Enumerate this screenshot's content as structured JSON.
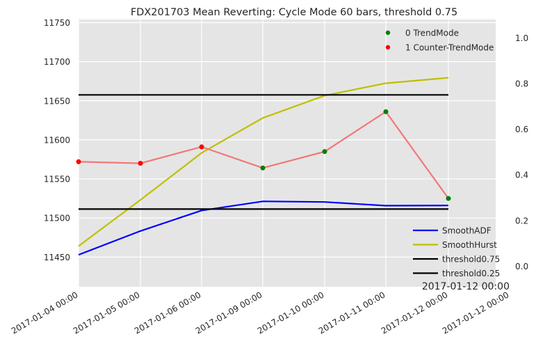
{
  "chart_data": {
    "type": "line",
    "title": "FDX201703 Mean Reverting: Cycle Mode 60 bars, threshold 0.75",
    "x_tick_labels": [
      "2017-01-04 00:00",
      "2017-01-05 00:00",
      "2017-01-06 00:00",
      "2017-01-09 00:00",
      "2017-01-10 00:00",
      "2017-01-11 00:00",
      "2017-01-12 00:00",
      "2017-01-12 00:00"
    ],
    "x_corner_label": "2017-01-12 00:00",
    "left_axis": {
      "ylim": [
        11412,
        11754
      ],
      "ticks": [
        11450,
        11500,
        11550,
        11600,
        11650,
        11700,
        11750
      ]
    },
    "right_axis": {
      "ylim": [
        -0.09,
        1.08
      ],
      "ticks": [
        "0.0",
        "0.2",
        "0.4",
        "0.6",
        "0.8",
        "1.0"
      ]
    },
    "grid": true,
    "series": [
      {
        "name": "SmoothADF",
        "axis": "right",
        "color": "#0000ff",
        "values": [
          0.05,
          0.154,
          0.244,
          0.284,
          0.281,
          0.265,
          0.266
        ]
      },
      {
        "name": "SmoothHurst",
        "axis": "right",
        "color": "#bfbf00",
        "values": [
          0.088,
          0.29,
          0.496,
          0.649,
          0.747,
          0.801,
          0.825
        ]
      },
      {
        "name": "threshold0.75",
        "axis": "right",
        "color": "#000000",
        "values": [
          0.75,
          0.75,
          0.75,
          0.75,
          0.75,
          0.75,
          0.75
        ]
      },
      {
        "name": "threshold0.25",
        "axis": "right",
        "color": "#000000",
        "values": [
          0.25,
          0.25,
          0.25,
          0.25,
          0.25,
          0.25,
          0.25
        ]
      }
    ],
    "price_line": {
      "axis": "left",
      "color": "#f07878",
      "values": [
        11572,
        11570,
        11591,
        11564,
        11585,
        11636,
        11525
      ]
    },
    "mode_points": {
      "legend": [
        {
          "label": "0 TrendMode",
          "color": "#008000"
        },
        {
          "label": "1 Counter-TrendMode",
          "color": "#ff0000"
        }
      ],
      "modes": [
        1,
        1,
        1,
        0,
        0,
        0,
        0
      ]
    },
    "legend_lines_placement": "lower-right",
    "legend_points_placement": "upper-right"
  }
}
